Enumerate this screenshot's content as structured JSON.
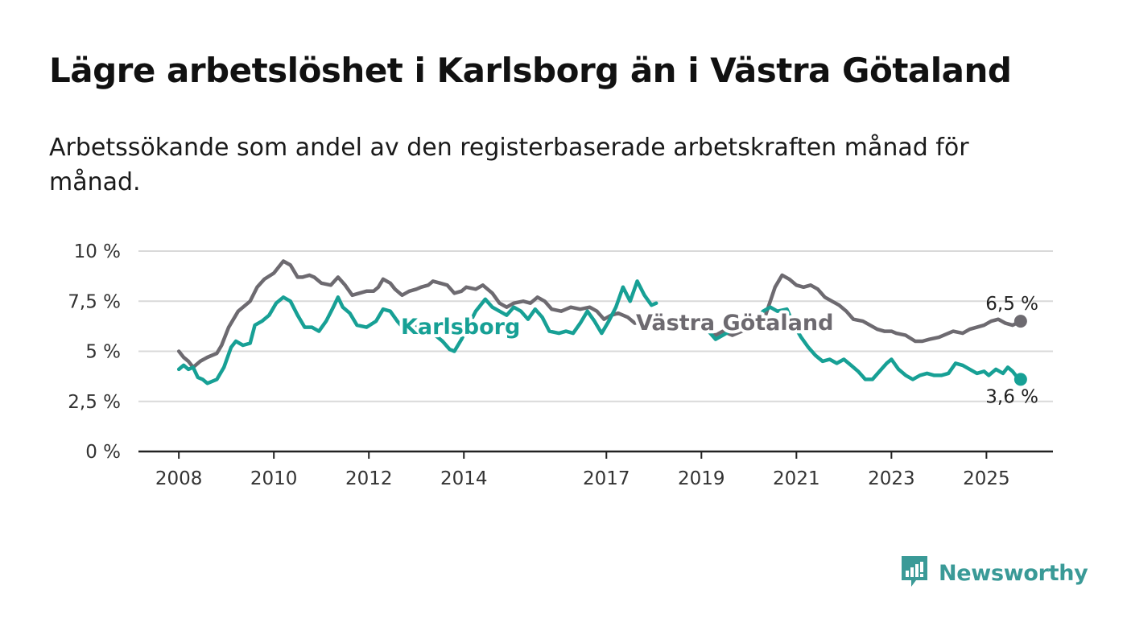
{
  "title": "Lägre arbetslöshet i Karlsborg än i Västra Götaland",
  "subtitle": "Arbetssökande som andel av den registerbaserade arbetskraften månad för månad.",
  "colors": {
    "karlsborg": "#17a095",
    "vastra_gotaland": "#6d6a70",
    "grid": "#d9d9d9",
    "axis": "#222222",
    "brand": "#3a9a97"
  },
  "branding": {
    "logo_text": "Newsworthy",
    "icon": "bar-chart-speech-bubble-icon"
  },
  "chart_data": {
    "type": "line",
    "x_tick_labels": [
      "2008",
      "2010",
      "2012",
      "2014",
      "2017",
      "2019",
      "2021",
      "2023",
      "2025"
    ],
    "x_tick_values": [
      2008,
      2010,
      2012,
      2014,
      2017,
      2019,
      2021,
      2023,
      2025
    ],
    "y_tick_labels": [
      "0 %",
      "2,5 %",
      "5 %",
      "7,5 %",
      "10 %"
    ],
    "y_tick_values": [
      0,
      2.5,
      5,
      7.5,
      10
    ],
    "xlim": [
      2007.15,
      2026.4
    ],
    "ylim": [
      0,
      10
    ],
    "grid": true,
    "series": [
      {
        "name": "Västra Götaland",
        "key": "vastra_gotaland",
        "end_label": "6,5 %",
        "points": [
          [
            2008.0,
            5.0
          ],
          [
            2008.1,
            4.7
          ],
          [
            2008.2,
            4.5
          ],
          [
            2008.3,
            4.2
          ],
          [
            2008.45,
            4.5
          ],
          [
            2008.6,
            4.7
          ],
          [
            2008.8,
            4.9
          ],
          [
            2008.9,
            5.3
          ],
          [
            2009.05,
            6.2
          ],
          [
            2009.25,
            7.0
          ],
          [
            2009.5,
            7.5
          ],
          [
            2009.65,
            8.2
          ],
          [
            2009.8,
            8.6
          ],
          [
            2010.0,
            8.9
          ],
          [
            2010.1,
            9.2
          ],
          [
            2010.2,
            9.5
          ],
          [
            2010.35,
            9.3
          ],
          [
            2010.5,
            8.7
          ],
          [
            2010.6,
            8.7
          ],
          [
            2010.75,
            8.8
          ],
          [
            2010.85,
            8.7
          ],
          [
            2011.0,
            8.4
          ],
          [
            2011.2,
            8.3
          ],
          [
            2011.35,
            8.7
          ],
          [
            2011.5,
            8.3
          ],
          [
            2011.65,
            7.8
          ],
          [
            2011.8,
            7.9
          ],
          [
            2011.95,
            8.0
          ],
          [
            2012.1,
            8.0
          ],
          [
            2012.2,
            8.2
          ],
          [
            2012.3,
            8.6
          ],
          [
            2012.45,
            8.4
          ],
          [
            2012.55,
            8.1
          ],
          [
            2012.7,
            7.8
          ],
          [
            2012.85,
            8.0
          ],
          [
            2013.0,
            8.1
          ],
          [
            2013.1,
            8.2
          ],
          [
            2013.25,
            8.3
          ],
          [
            2013.35,
            8.5
          ],
          [
            2013.5,
            8.4
          ],
          [
            2013.65,
            8.3
          ],
          [
            2013.8,
            7.9
          ],
          [
            2013.95,
            8.0
          ],
          [
            2014.05,
            8.2
          ],
          [
            2014.25,
            8.1
          ],
          [
            2014.4,
            8.3
          ],
          [
            2014.6,
            7.9
          ],
          [
            2014.75,
            7.4
          ],
          [
            2014.9,
            7.2
          ],
          [
            2015.05,
            7.4
          ],
          [
            2015.25,
            7.5
          ],
          [
            2015.4,
            7.4
          ],
          [
            2015.55,
            7.7
          ],
          [
            2015.7,
            7.5
          ],
          [
            2015.85,
            7.1
          ],
          [
            2016.05,
            7.0
          ],
          [
            2016.25,
            7.2
          ],
          [
            2016.45,
            7.1
          ],
          [
            2016.65,
            7.2
          ],
          [
            2016.8,
            7.0
          ],
          [
            2016.95,
            6.6
          ],
          [
            2017.1,
            6.8
          ],
          [
            2017.25,
            6.9
          ],
          [
            2017.45,
            6.7
          ],
          [
            2017.6,
            6.4
          ],
          [
            2017.75,
            6.5
          ]
        ],
        "points_continued": [
          [
            2019.15,
            6.0
          ],
          [
            2019.3,
            5.8
          ],
          [
            2019.45,
            6.0
          ],
          [
            2019.65,
            5.8
          ],
          [
            2019.85,
            6.0
          ],
          [
            2020.05,
            6.2
          ],
          [
            2020.2,
            6.3
          ],
          [
            2020.35,
            6.8
          ],
          [
            2020.55,
            8.2
          ],
          [
            2020.7,
            8.8
          ],
          [
            2020.85,
            8.6
          ],
          [
            2021.0,
            8.3
          ],
          [
            2021.15,
            8.2
          ],
          [
            2021.3,
            8.3
          ],
          [
            2021.45,
            8.1
          ],
          [
            2021.6,
            7.7
          ],
          [
            2021.75,
            7.5
          ],
          [
            2021.9,
            7.3
          ],
          [
            2022.05,
            7.0
          ],
          [
            2022.2,
            6.6
          ],
          [
            2022.4,
            6.5
          ],
          [
            2022.55,
            6.3
          ],
          [
            2022.7,
            6.1
          ],
          [
            2022.85,
            6.0
          ],
          [
            2023.0,
            6.0
          ],
          [
            2023.1,
            5.9
          ],
          [
            2023.3,
            5.8
          ],
          [
            2023.5,
            5.5
          ],
          [
            2023.65,
            5.5
          ],
          [
            2023.8,
            5.6
          ],
          [
            2024.0,
            5.7
          ],
          [
            2024.1,
            5.8
          ],
          [
            2024.3,
            6.0
          ],
          [
            2024.5,
            5.9
          ],
          [
            2024.65,
            6.1
          ],
          [
            2024.8,
            6.2
          ],
          [
            2024.95,
            6.3
          ],
          [
            2025.1,
            6.5
          ],
          [
            2025.25,
            6.6
          ],
          [
            2025.4,
            6.4
          ],
          [
            2025.55,
            6.3
          ],
          [
            2025.72,
            6.5
          ]
        ]
      },
      {
        "name": "Karlsborg",
        "key": "karlsborg",
        "end_label": "3,6 %",
        "points": [
          [
            2008.0,
            4.1
          ],
          [
            2008.1,
            4.3
          ],
          [
            2008.2,
            4.1
          ],
          [
            2008.3,
            4.2
          ],
          [
            2008.4,
            3.7
          ],
          [
            2008.5,
            3.6
          ],
          [
            2008.6,
            3.4
          ],
          [
            2008.8,
            3.6
          ],
          [
            2008.95,
            4.2
          ],
          [
            2009.1,
            5.2
          ],
          [
            2009.2,
            5.5
          ],
          [
            2009.35,
            5.3
          ],
          [
            2009.5,
            5.4
          ],
          [
            2009.6,
            6.3
          ],
          [
            2009.75,
            6.5
          ],
          [
            2009.9,
            6.8
          ],
          [
            2010.05,
            7.4
          ],
          [
            2010.2,
            7.7
          ],
          [
            2010.35,
            7.5
          ],
          [
            2010.5,
            6.8
          ],
          [
            2010.65,
            6.2
          ],
          [
            2010.8,
            6.2
          ],
          [
            2010.95,
            6.0
          ],
          [
            2011.1,
            6.5
          ],
          [
            2011.25,
            7.2
          ],
          [
            2011.35,
            7.7
          ],
          [
            2011.45,
            7.2
          ],
          [
            2011.6,
            6.9
          ],
          [
            2011.75,
            6.3
          ],
          [
            2011.95,
            6.2
          ],
          [
            2012.15,
            6.5
          ],
          [
            2012.3,
            7.1
          ],
          [
            2012.45,
            7.0
          ],
          [
            2012.6,
            6.5
          ],
          [
            2012.75,
            6.1
          ],
          [
            2012.9,
            6.0
          ],
          [
            2013.05,
            6.3
          ],
          [
            2013.2,
            6.0
          ],
          [
            2013.4,
            5.8
          ],
          [
            2013.55,
            5.5
          ],
          [
            2013.7,
            5.1
          ],
          [
            2013.8,
            5.0
          ],
          [
            2013.95,
            5.6
          ],
          [
            2014.1,
            6.3
          ],
          [
            2014.25,
            7.0
          ],
          [
            2014.45,
            7.6
          ],
          [
            2014.6,
            7.2
          ],
          [
            2014.75,
            7.0
          ],
          [
            2014.9,
            6.8
          ],
          [
            2015.05,
            7.2
          ],
          [
            2015.2,
            7.0
          ],
          [
            2015.35,
            6.6
          ],
          [
            2015.5,
            7.1
          ],
          [
            2015.65,
            6.7
          ],
          [
            2015.8,
            6.0
          ],
          [
            2016.0,
            5.9
          ],
          [
            2016.15,
            6.0
          ],
          [
            2016.3,
            5.9
          ],
          [
            2016.45,
            6.4
          ],
          [
            2016.6,
            7.0
          ],
          [
            2016.75,
            6.5
          ],
          [
            2016.9,
            5.9
          ],
          [
            2017.05,
            6.5
          ],
          [
            2017.2,
            7.2
          ],
          [
            2017.35,
            8.2
          ],
          [
            2017.5,
            7.5
          ],
          [
            2017.65,
            8.5
          ],
          [
            2017.8,
            7.8
          ],
          [
            2017.95,
            7.3
          ],
          [
            2018.05,
            7.4
          ]
        ],
        "points_continued": [
          [
            2019.15,
            6.0
          ],
          [
            2019.3,
            5.6
          ],
          [
            2019.45,
            5.8
          ],
          [
            2019.6,
            6.0
          ],
          [
            2019.8,
            6.1
          ],
          [
            2020.0,
            6.2
          ],
          [
            2020.15,
            6.5
          ],
          [
            2020.3,
            7.0
          ],
          [
            2020.45,
            7.2
          ],
          [
            2020.6,
            7.0
          ],
          [
            2020.8,
            7.1
          ],
          [
            2020.95,
            6.3
          ],
          [
            2021.1,
            5.7
          ],
          [
            2021.25,
            5.2
          ],
          [
            2021.4,
            4.8
          ],
          [
            2021.55,
            4.5
          ],
          [
            2021.7,
            4.6
          ],
          [
            2021.85,
            4.4
          ],
          [
            2022.0,
            4.6
          ],
          [
            2022.15,
            4.3
          ],
          [
            2022.3,
            4.0
          ],
          [
            2022.45,
            3.6
          ],
          [
            2022.6,
            3.6
          ],
          [
            2022.75,
            4.0
          ],
          [
            2022.9,
            4.4
          ],
          [
            2023.0,
            4.6
          ],
          [
            2023.15,
            4.1
          ],
          [
            2023.3,
            3.8
          ],
          [
            2023.45,
            3.6
          ],
          [
            2023.6,
            3.8
          ],
          [
            2023.75,
            3.9
          ],
          [
            2023.9,
            3.8
          ],
          [
            2024.05,
            3.8
          ],
          [
            2024.2,
            3.9
          ],
          [
            2024.35,
            4.4
          ],
          [
            2024.5,
            4.3
          ],
          [
            2024.65,
            4.1
          ],
          [
            2024.8,
            3.9
          ],
          [
            2024.95,
            4.0
          ],
          [
            2025.05,
            3.8
          ],
          [
            2025.2,
            4.1
          ],
          [
            2025.35,
            3.9
          ],
          [
            2025.45,
            4.2
          ],
          [
            2025.55,
            4.0
          ],
          [
            2025.65,
            3.7
          ],
          [
            2025.72,
            3.6
          ]
        ]
      }
    ]
  }
}
